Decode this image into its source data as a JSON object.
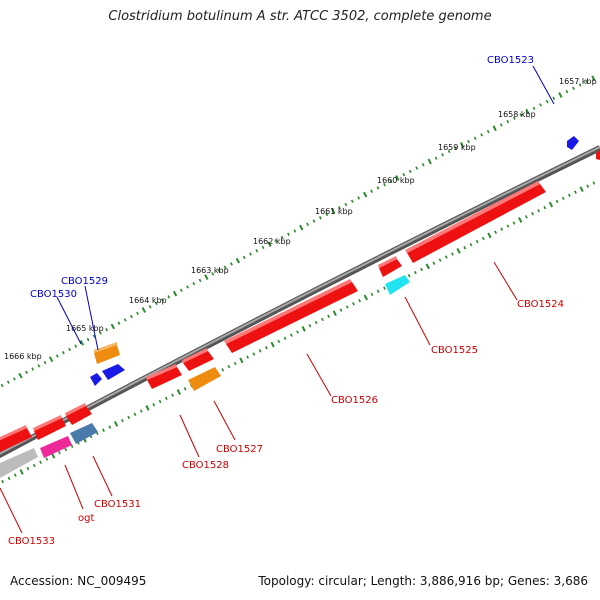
{
  "title": "Clostridium botulinum A str. ATCC 3502, complete genome",
  "footer": {
    "accession": "Accession: NC_009495",
    "summary": "Topology: circular; Length: 3,886,916 bp; Genes: 3,686"
  },
  "colors": {
    "backbone": "#808080",
    "tick": "#2a8a2a",
    "label_red": "#cc0000",
    "label_blue": "#0000cc",
    "gene_red": "#ee1111",
    "gene_orange": "#ee8c10",
    "gene_blue": "#1a1ae6",
    "gene_cyan": "#22e4f0",
    "gene_magenta": "#ee2a9a",
    "gene_steel": "#4a7aaa",
    "gene_grey": "#bcbcbc"
  },
  "kbp_labels": [
    "1657 kbp",
    "1658 kbp",
    "1659 kbp",
    "1660 kbp",
    "1661 kbp",
    "1662 kbp",
    "1663 kbp",
    "1664 kbp",
    "1665 kbp",
    "1666 kbp"
  ],
  "gene_labels": [
    {
      "id": "CBO1523",
      "strand": "plus"
    },
    {
      "id": "CBO1529",
      "strand": "plus"
    },
    {
      "id": "CBO1530",
      "strand": "plus"
    },
    {
      "id": "CBO1524",
      "strand": "minus"
    },
    {
      "id": "CBO1525",
      "strand": "minus"
    },
    {
      "id": "CBO1526",
      "strand": "minus"
    },
    {
      "id": "CBO1527",
      "strand": "minus"
    },
    {
      "id": "CBO1528",
      "strand": "minus"
    },
    {
      "id": "CBO1531",
      "strand": "minus"
    },
    {
      "id": "ogt",
      "strand": "minus"
    },
    {
      "id": "CBO1533",
      "strand": "minus"
    }
  ]
}
